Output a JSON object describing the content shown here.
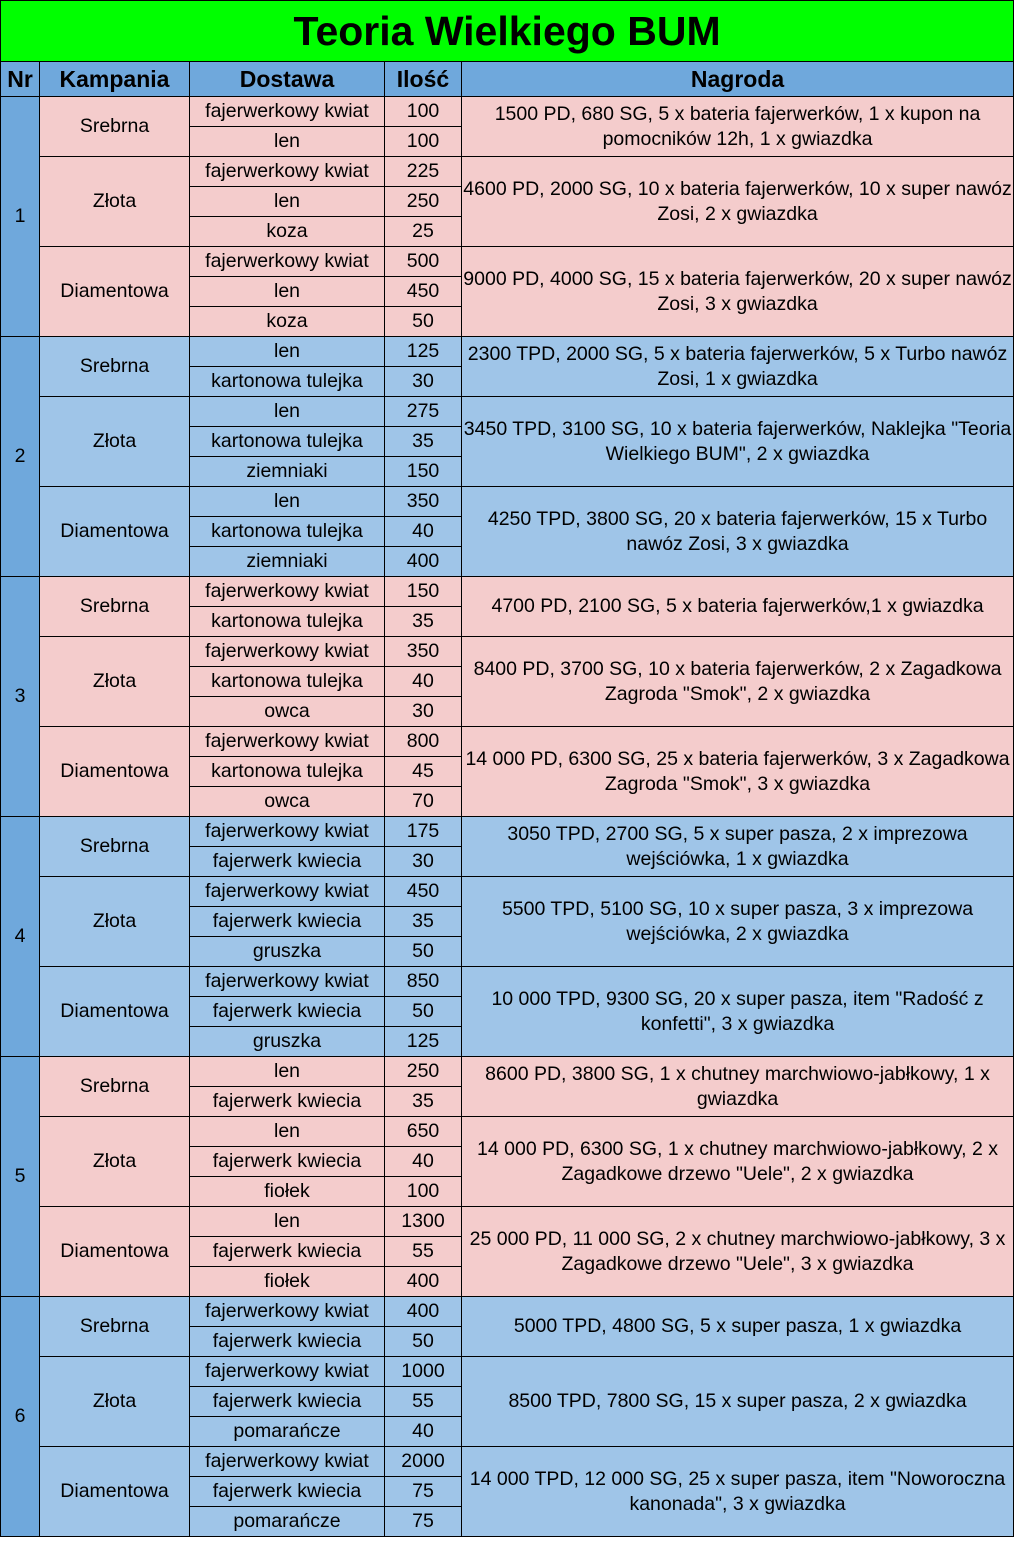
{
  "title": "Teoria Wielkiego BUM",
  "headers": [
    "Nr",
    "Kampania",
    "Dostawa",
    "Ilość",
    "Nagroda"
  ],
  "colors": {
    "title_bg": "#00ff00",
    "header_bg": "#6fa8dc",
    "pink": "#f4cccc",
    "blue": "#9fc5e8"
  },
  "stages": [
    {
      "nr": "1",
      "campaigns": [
        {
          "name": "Srebrna",
          "items": [
            {
              "dostawa": "fajerwerkowy kwiat",
              "ilosc": "100"
            },
            {
              "dostawa": "len",
              "ilosc": "100"
            }
          ],
          "reward": "1500 PD, 680 SG, 5 x bateria fajerwerków, 1 x kupon na pomocników 12h, 1 x gwiazdka"
        },
        {
          "name": "Złota",
          "items": [
            {
              "dostawa": "fajerwerkowy kwiat",
              "ilosc": "225"
            },
            {
              "dostawa": "len",
              "ilosc": "250"
            },
            {
              "dostawa": "koza",
              "ilosc": "25"
            }
          ],
          "reward": "4600 PD, 2000 SG, 10 x bateria fajerwerków, 10 x super nawóz Zosi, 2 x gwiazdka"
        },
        {
          "name": "Diamentowa",
          "items": [
            {
              "dostawa": "fajerwerkowy kwiat",
              "ilosc": "500"
            },
            {
              "dostawa": "len",
              "ilosc": "450"
            },
            {
              "dostawa": "koza",
              "ilosc": "50"
            }
          ],
          "reward": "9000 PD, 4000 SG, 15 x bateria fajerwerków, 20 x super nawóz Zosi, 3 x gwiazdka"
        }
      ]
    },
    {
      "nr": "2",
      "campaigns": [
        {
          "name": "Srebrna",
          "items": [
            {
              "dostawa": "len",
              "ilosc": "125"
            },
            {
              "dostawa": "kartonowa tulejka",
              "ilosc": "30"
            }
          ],
          "reward": "2300 TPD, 2000 SG, 5 x bateria fajerwerków, 5 x Turbo nawóz Zosi, 1 x gwiazdka"
        },
        {
          "name": "Złota",
          "items": [
            {
              "dostawa": "len",
              "ilosc": "275"
            },
            {
              "dostawa": "kartonowa tulejka",
              "ilosc": "35"
            },
            {
              "dostawa": "ziemniaki",
              "ilosc": "150"
            }
          ],
          "reward": "3450 TPD, 3100 SG, 10 x bateria fajerwerków, Naklejka \"Teoria Wielkiego BUM\", 2 x gwiazdka"
        },
        {
          "name": "Diamentowa",
          "items": [
            {
              "dostawa": "len",
              "ilosc": "350"
            },
            {
              "dostawa": "kartonowa tulejka",
              "ilosc": "40"
            },
            {
              "dostawa": "ziemniaki",
              "ilosc": "400"
            }
          ],
          "reward": "4250 TPD, 3800 SG, 20 x bateria fajerwerków, 15 x Turbo nawóz Zosi, 3 x gwiazdka"
        }
      ]
    },
    {
      "nr": "3",
      "campaigns": [
        {
          "name": "Srebrna",
          "items": [
            {
              "dostawa": "fajerwerkowy kwiat",
              "ilosc": "150"
            },
            {
              "dostawa": "kartonowa tulejka",
              "ilosc": "35"
            }
          ],
          "reward": "4700 PD, 2100 SG, 5 x bateria fajerwerków,1 x gwiazdka"
        },
        {
          "name": "Złota",
          "items": [
            {
              "dostawa": "fajerwerkowy kwiat",
              "ilosc": "350"
            },
            {
              "dostawa": "kartonowa tulejka",
              "ilosc": "40"
            },
            {
              "dostawa": "owca",
              "ilosc": "30"
            }
          ],
          "reward": "8400 PD, 3700 SG, 10 x bateria fajerwerków,  2 x Zagadkowa Zagroda \"Smok\", 2 x gwiazdka"
        },
        {
          "name": "Diamentowa",
          "items": [
            {
              "dostawa": "fajerwerkowy kwiat",
              "ilosc": "800"
            },
            {
              "dostawa": "kartonowa tulejka",
              "ilosc": "45"
            },
            {
              "dostawa": "owca",
              "ilosc": "70"
            }
          ],
          "reward": "14 000 PD, 6300 SG, 25 x bateria fajerwerków, 3 x Zagadkowa Zagroda \"Smok\", 3 x gwiazdka"
        }
      ]
    },
    {
      "nr": "4",
      "campaigns": [
        {
          "name": "Srebrna",
          "items": [
            {
              "dostawa": "fajerwerkowy kwiat",
              "ilosc": "175"
            },
            {
              "dostawa": "fajerwerk kwiecia",
              "ilosc": "30"
            }
          ],
          "reward": "3050 TPD, 2700 SG, 5 x super pasza, 2 x imprezowa wejściówka, 1 x gwiazdka"
        },
        {
          "name": "Złota",
          "items": [
            {
              "dostawa": "fajerwerkowy kwiat",
              "ilosc": "450"
            },
            {
              "dostawa": "fajerwerk kwiecia",
              "ilosc": "35"
            },
            {
              "dostawa": "gruszka",
              "ilosc": "50"
            }
          ],
          "reward": "5500 TPD, 5100 SG, 10 x super pasza, 3 x imprezowa wejściówka, 2 x gwiazdka"
        },
        {
          "name": "Diamentowa",
          "items": [
            {
              "dostawa": "fajerwerkowy kwiat",
              "ilosc": "850"
            },
            {
              "dostawa": "fajerwerk kwiecia",
              "ilosc": "50"
            },
            {
              "dostawa": "gruszka",
              "ilosc": "125"
            }
          ],
          "reward": "10 000 TPD, 9300 SG, 20 x super pasza, item \"Radość z konfetti\", 3 x gwiazdka"
        }
      ]
    },
    {
      "nr": "5",
      "campaigns": [
        {
          "name": "Srebrna",
          "items": [
            {
              "dostawa": "len",
              "ilosc": "250"
            },
            {
              "dostawa": "fajerwerk kwiecia",
              "ilosc": "35"
            }
          ],
          "reward": "8600 PD, 3800 SG, 1 x chutney marchwiowo-jabłkowy, 1 x gwiazdka"
        },
        {
          "name": "Złota",
          "items": [
            {
              "dostawa": "len",
              "ilosc": "650"
            },
            {
              "dostawa": "fajerwerk kwiecia",
              "ilosc": "40"
            },
            {
              "dostawa": "fiołek",
              "ilosc": "100"
            }
          ],
          "reward": "14 000 PD, 6300 SG, 1 x chutney marchwiowo-jabłkowy, 2 x Zagadkowe drzewo \"Uele\", 2 x gwiazdka"
        },
        {
          "name": "Diamentowa",
          "items": [
            {
              "dostawa": "len",
              "ilosc": "1300"
            },
            {
              "dostawa": "fajerwerk kwiecia",
              "ilosc": "55"
            },
            {
              "dostawa": "fiołek",
              "ilosc": "400"
            }
          ],
          "reward": "25 000 PD, 11 000 SG, 2 x chutney marchwiowo-jabłkowy, 3 x  Zagadkowe drzewo \"Uele\", 3 x gwiazdka"
        }
      ]
    },
    {
      "nr": "6",
      "campaigns": [
        {
          "name": "Srebrna",
          "items": [
            {
              "dostawa": "fajerwerkowy kwiat",
              "ilosc": "400"
            },
            {
              "dostawa": "fajerwerk kwiecia",
              "ilosc": "50"
            }
          ],
          "reward": "5000 TPD, 4800 SG, 5 x super pasza, 1 x gwiazdka"
        },
        {
          "name": "Złota",
          "items": [
            {
              "dostawa": "fajerwerkowy kwiat",
              "ilosc": "1000"
            },
            {
              "dostawa": "fajerwerk kwiecia",
              "ilosc": "55"
            },
            {
              "dostawa": "pomarańcze",
              "ilosc": "40"
            }
          ],
          "reward": "8500 TPD, 7800 SG, 15 x super pasza, 2 x gwiazdka"
        },
        {
          "name": "Diamentowa",
          "items": [
            {
              "dostawa": "fajerwerkowy kwiat",
              "ilosc": "2000"
            },
            {
              "dostawa": "fajerwerk kwiecia",
              "ilosc": "75"
            },
            {
              "dostawa": "pomarańcze",
              "ilosc": "75"
            }
          ],
          "reward": "14 000 TPD, 12 000 SG, 25 x super pasza, item \"Noworoczna kanonada\", 3 x gwiazdka"
        }
      ]
    }
  ]
}
